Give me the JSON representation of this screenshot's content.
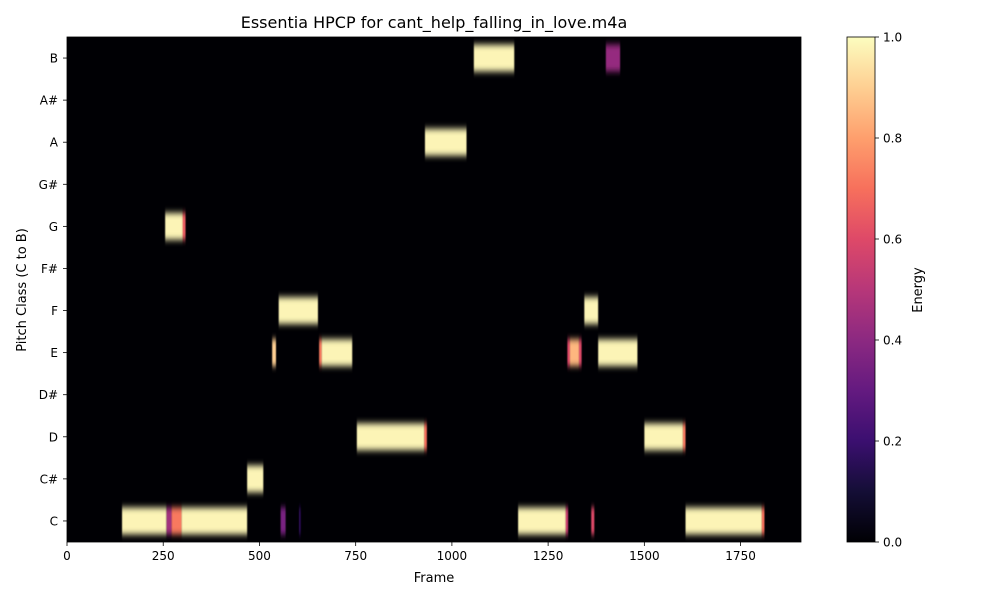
{
  "chart_data": {
    "type": "heatmap",
    "title": "Essentia HPCP for cant_help_falling_in_love.m4a",
    "xlabel": "Frame",
    "ylabel": "Pitch Class (C to B)",
    "xlim": [
      0,
      1907
    ],
    "x_ticks": [
      0,
      250,
      500,
      750,
      1000,
      1250,
      1500,
      1750
    ],
    "y_categories": [
      "C",
      "C#",
      "D",
      "D#",
      "E",
      "F",
      "F#",
      "G",
      "G#",
      "A",
      "A#",
      "B"
    ],
    "colormap": "magma",
    "colorbar": {
      "label": "Energy",
      "range": [
        0.0,
        1.0
      ],
      "ticks": [
        "0.0",
        "0.2",
        "0.4",
        "0.6",
        "0.8",
        "1.0"
      ]
    },
    "segments": [
      {
        "pitch": "C",
        "start": 143,
        "end": 258,
        "value": 0.98
      },
      {
        "pitch": "C",
        "start": 258,
        "end": 272,
        "value": 0.45
      },
      {
        "pitch": "C",
        "start": 272,
        "end": 298,
        "value": 0.72
      },
      {
        "pitch": "C",
        "start": 298,
        "end": 468,
        "value": 0.98
      },
      {
        "pitch": "C",
        "start": 555,
        "end": 568,
        "value": 0.35
      },
      {
        "pitch": "C",
        "start": 603,
        "end": 607,
        "value": 0.18
      },
      {
        "pitch": "C",
        "start": 1172,
        "end": 1295,
        "value": 0.98
      },
      {
        "pitch": "C",
        "start": 1295,
        "end": 1302,
        "value": 0.55
      },
      {
        "pitch": "C",
        "start": 1362,
        "end": 1370,
        "value": 0.6
      },
      {
        "pitch": "C",
        "start": 1607,
        "end": 1805,
        "value": 0.98
      },
      {
        "pitch": "C",
        "start": 1805,
        "end": 1812,
        "value": 0.7
      },
      {
        "pitch": "C#",
        "start": 468,
        "end": 510,
        "value": 0.98
      },
      {
        "pitch": "D",
        "start": 753,
        "end": 928,
        "value": 0.98
      },
      {
        "pitch": "D",
        "start": 928,
        "end": 935,
        "value": 0.7
      },
      {
        "pitch": "D",
        "start": 1500,
        "end": 1600,
        "value": 0.98
      },
      {
        "pitch": "D",
        "start": 1600,
        "end": 1607,
        "value": 0.72
      },
      {
        "pitch": "E",
        "start": 533,
        "end": 543,
        "value": 0.9
      },
      {
        "pitch": "E",
        "start": 655,
        "end": 662,
        "value": 0.72
      },
      {
        "pitch": "E",
        "start": 662,
        "end": 741,
        "value": 0.98
      },
      {
        "pitch": "E",
        "start": 1300,
        "end": 1307,
        "value": 0.6
      },
      {
        "pitch": "E",
        "start": 1307,
        "end": 1330,
        "value": 0.85
      },
      {
        "pitch": "E",
        "start": 1330,
        "end": 1337,
        "value": 0.6
      },
      {
        "pitch": "E",
        "start": 1380,
        "end": 1482,
        "value": 0.98
      },
      {
        "pitch": "F",
        "start": 550,
        "end": 652,
        "value": 0.98
      },
      {
        "pitch": "F",
        "start": 1344,
        "end": 1380,
        "value": 0.98
      },
      {
        "pitch": "G",
        "start": 255,
        "end": 300,
        "value": 0.98
      },
      {
        "pitch": "G",
        "start": 300,
        "end": 308,
        "value": 0.65
      },
      {
        "pitch": "A",
        "start": 930,
        "end": 1038,
        "value": 0.98
      },
      {
        "pitch": "B",
        "start": 1057,
        "end": 1162,
        "value": 0.98
      },
      {
        "pitch": "B",
        "start": 1400,
        "end": 1437,
        "value": 0.42
      }
    ]
  }
}
